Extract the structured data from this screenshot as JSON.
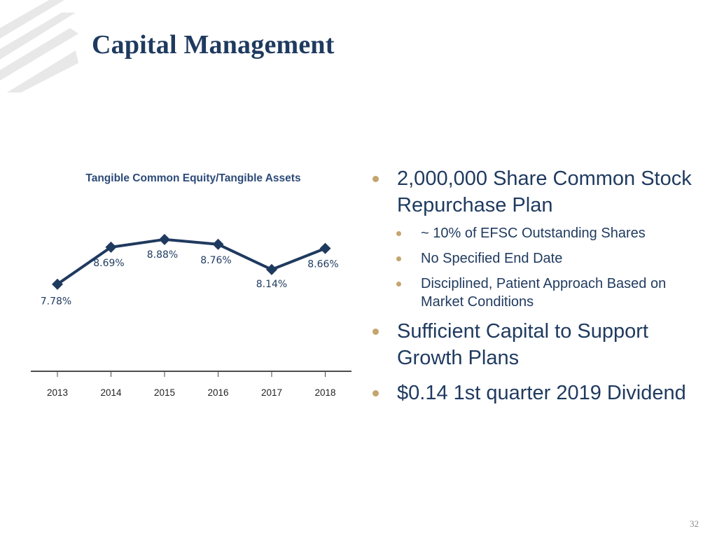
{
  "slide": {
    "title": "Capital Management",
    "page_number": "32"
  },
  "colors": {
    "title": "#1f3a5f",
    "series": "#1f3a5f",
    "bullet_dot": "#c4a56e",
    "logo_stripes": "#e6e6e6"
  },
  "chart_data": {
    "type": "line",
    "title": "Tangible Common Equity/Tangible Assets",
    "categories": [
      "2013",
      "2014",
      "2015",
      "2016",
      "2017",
      "2018"
    ],
    "series": [
      {
        "name": "Tangible Common Equity/Tangible Assets",
        "values": [
          7.78,
          8.69,
          8.88,
          8.76,
          8.14,
          8.66
        ],
        "labels": [
          "7.78%",
          "8.69%",
          "8.88%",
          "8.76%",
          "8.14%",
          "8.66%"
        ]
      }
    ],
    "xlabel": "",
    "ylabel": "",
    "grid": false,
    "legend": "none"
  },
  "bullets": [
    {
      "text": "2,000,000 Share Common Stock Repurchase Plan",
      "sub": [
        "~ 10% of EFSC Outstanding Shares",
        "No Specified End Date",
        "Disciplined, Patient Approach Based on Market Conditions"
      ]
    },
    {
      "text": "Sufficient Capital to Support Growth Plans",
      "sub": []
    },
    {
      "text": "$0.14 1st quarter 2019 Dividend",
      "sub": []
    }
  ]
}
